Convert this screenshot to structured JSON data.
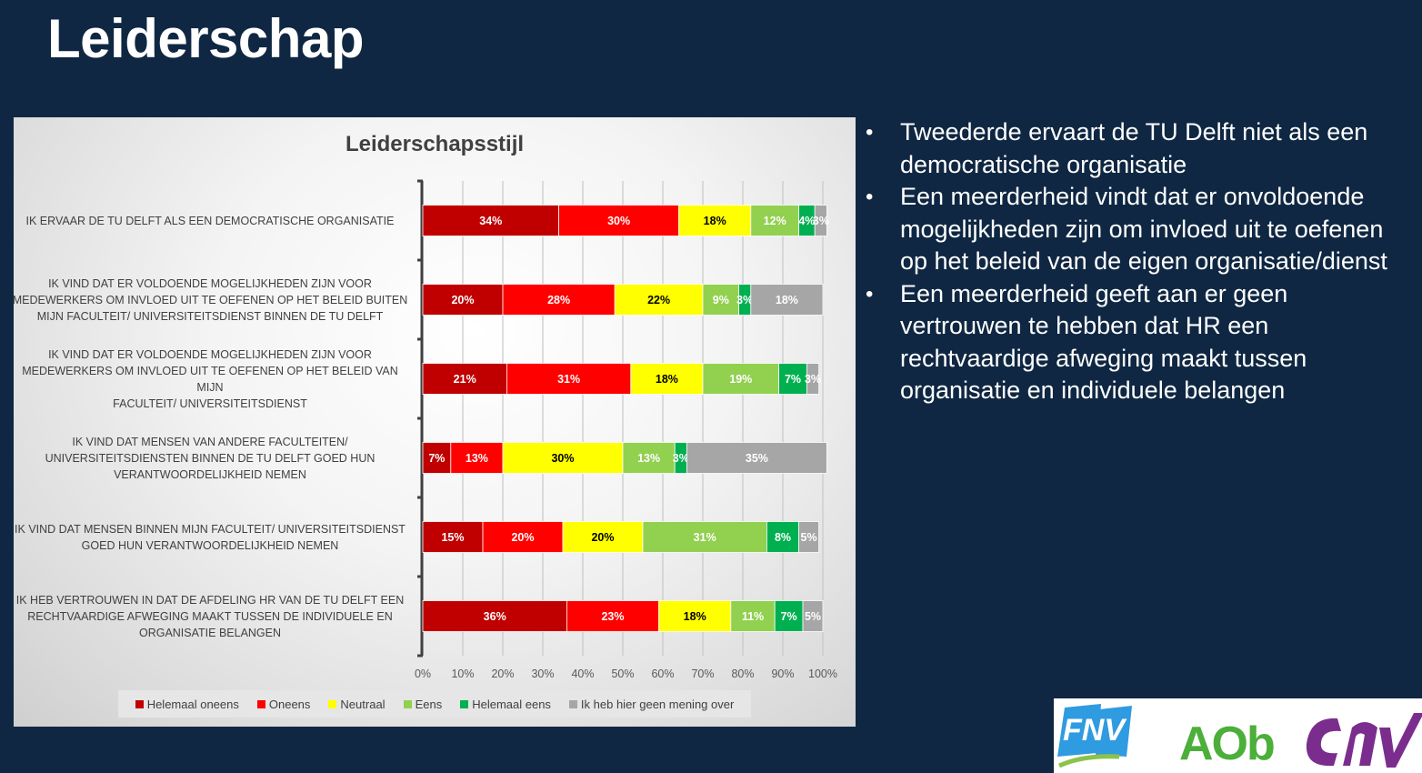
{
  "slide": {
    "title": "Leiderschap",
    "bullets": [
      "Tweederde ervaart de TU Delft niet als een democratische organisatie",
      "Een meerderheid vindt dat er onvoldoende mogelijkheden zijn om invloed uit te oefenen op het beleid van de eigen organisatie/dienst",
      "Een meerderheid geeft aan er geen vertrouwen te hebben dat HR een rechtvaardige afweging maakt tussen organisatie en individuele belangen"
    ],
    "bullet_symbol": "•",
    "logos": [
      {
        "name": "FNV",
        "text": "FNV",
        "color": "#2f9be0"
      },
      {
        "name": "AOb",
        "text": "AOb",
        "color": "#4caf3a"
      },
      {
        "name": "CNV",
        "text": "CNV",
        "color": "#7b2d8e"
      }
    ]
  },
  "chart_data": {
    "type": "bar",
    "orientation": "horizontal",
    "stacked": "percent",
    "title": "Leiderschapsstijl",
    "xlabel": "",
    "ylabel": "",
    "xlim": [
      0,
      100
    ],
    "x_ticks": [
      "0%",
      "10%",
      "20%",
      "30%",
      "40%",
      "50%",
      "60%",
      "70%",
      "80%",
      "90%",
      "100%"
    ],
    "grid": true,
    "legend_position": "bottom",
    "categories": [
      "IK ERVAAR DE TU DELFT ALS EEN DEMOCRATISCHE ORGANISATIE",
      "IK VIND DAT ER VOLDOENDE MOGELIJKHEDEN ZIJN VOOR MEDEWERKERS OM INVLOED UIT TE OEFENEN OP HET BELEID BUITEN MIJN FACULTEIT/ UNIVERSITEITSDIENST BINNEN DE TU DELFT",
      "IK VIND DAT ER VOLDOENDE MOGELIJKHEDEN ZIJN VOOR MEDEWERKERS OM INVLOED UIT TE OEFENEN OP HET BELEID VAN MIJN FACULTEIT/ UNIVERSITEITSDIENST",
      "IK VIND DAT MENSEN VAN ANDERE FACULTEITEN/ UNIVERSITEITSDIENSTEN BINNEN DE TU DELFT GOED HUN VERANTWOORDELIJKHEID NEMEN",
      "IK VIND DAT MENSEN BINNEN MIJN FACULTEIT/ UNIVERSITEITSDIENST GOED HUN VERANTWOORDELIJKHEID NEMEN",
      "IK HEB VERTROUWEN IN DAT DE AFDELING HR VAN DE TU DELFT EEN RECHTVAARDIGE AFWEGING MAAKT TUSSEN DE INDIVIDUELE EN ORGANISATIE BELANGEN"
    ],
    "category_lines": [
      [
        "IK ERVAAR DE TU DELFT ALS EEN DEMOCRATISCHE ORGANISATIE"
      ],
      [
        "IK VIND DAT ER VOLDOENDE MOGELIJKHEDEN ZIJN VOOR",
        "MEDEWERKERS OM INVLOED UIT TE OEFENEN OP HET BELEID BUITEN",
        "MIJN FACULTEIT/ UNIVERSITEITSDIENST BINNEN DE TU DELFT"
      ],
      [
        "IK VIND DAT ER VOLDOENDE MOGELIJKHEDEN ZIJN VOOR",
        "MEDEWERKERS OM INVLOED UIT TE OEFENEN OP HET BELEID VAN MIJN",
        "FACULTEIT/ UNIVERSITEITSDIENST"
      ],
      [
        "IK VIND DAT MENSEN VAN ANDERE FACULTEITEN/",
        "UNIVERSITEITSDIENSTEN BINNEN DE TU DELFT GOED HUN",
        "VERANTWOORDELIJKHEID NEMEN"
      ],
      [
        "IK VIND DAT MENSEN BINNEN MIJN FACULTEIT/ UNIVERSITEITSDIENST",
        "GOED HUN VERANTWOORDELIJKHEID NEMEN"
      ],
      [
        "IK HEB VERTROUWEN IN DAT DE AFDELING HR VAN DE TU DELFT EEN",
        "RECHTVAARDIGE AFWEGING MAAKT TUSSEN DE INDIVIDUELE EN",
        "ORGANISATIE BELANGEN"
      ]
    ],
    "series": [
      {
        "name": "Helemaal oneens",
        "color": "#c00000",
        "label_color": "#ffffff",
        "values": [
          34,
          20,
          21,
          7,
          15,
          36
        ]
      },
      {
        "name": "Oneens",
        "color": "#ff0000",
        "label_color": "#ffffff",
        "values": [
          30,
          28,
          31,
          13,
          20,
          23
        ]
      },
      {
        "name": "Neutraal",
        "color": "#ffff00",
        "label_color": "#000000",
        "values": [
          18,
          22,
          18,
          30,
          20,
          18
        ]
      },
      {
        "name": "Eens",
        "color": "#92d050",
        "label_color": "#ffffff",
        "values": [
          12,
          9,
          19,
          13,
          31,
          11
        ]
      },
      {
        "name": "Helemaal eens",
        "color": "#00b050",
        "label_color": "#ffffff",
        "values": [
          4,
          3,
          7,
          3,
          8,
          7
        ]
      },
      {
        "name": "Ik heb hier geen mening over",
        "color": "#a6a6a6",
        "label_color": "#ffffff",
        "values": [
          3,
          18,
          3,
          35,
          5,
          5
        ]
      }
    ]
  }
}
